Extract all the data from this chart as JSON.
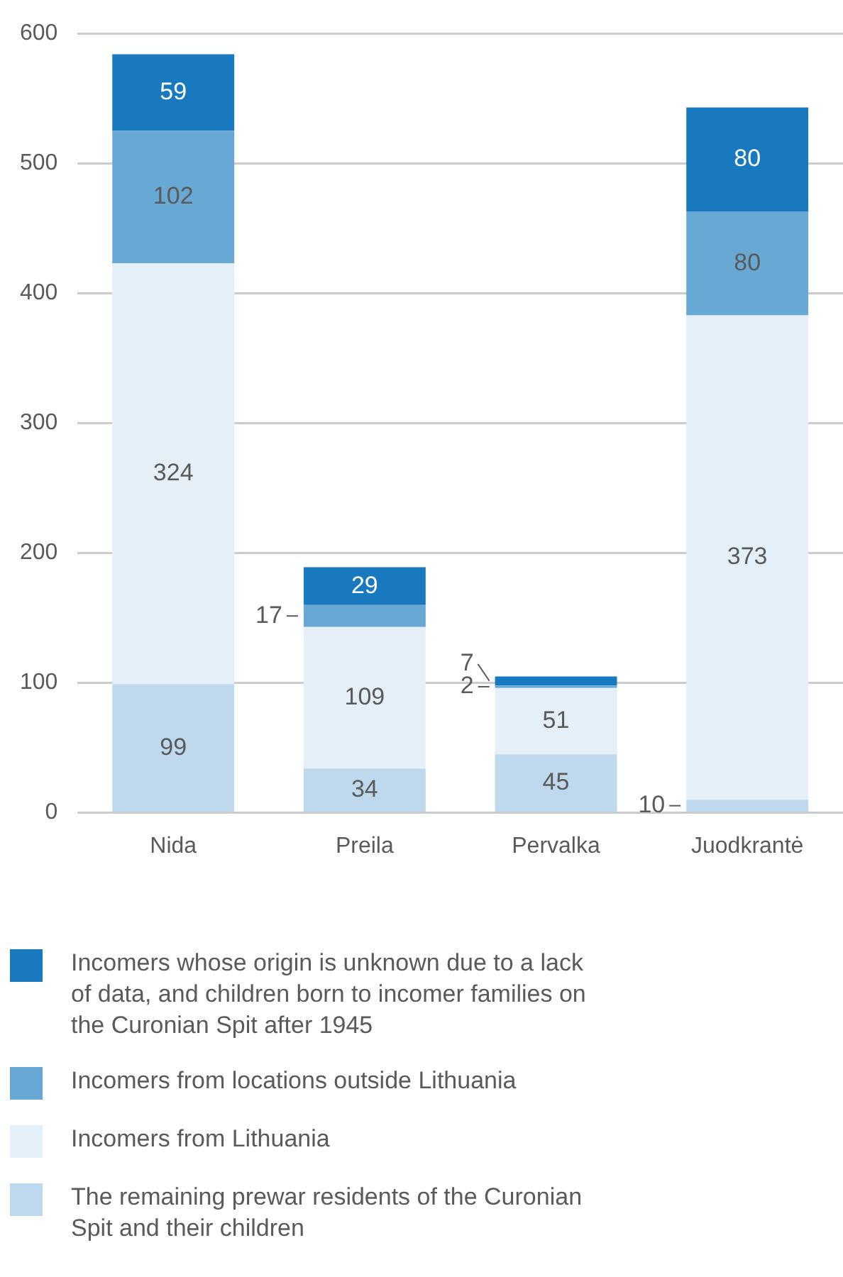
{
  "chart_data": {
    "type": "bar",
    "stacked": true,
    "categories": [
      "Nida",
      "Preila",
      "Pervalka",
      "Juodkrantė"
    ],
    "series": [
      {
        "name": "The remaining prewar residents of the Curonian Spit and their children",
        "color": "#bed9ee",
        "values": [
          99,
          34,
          45,
          10
        ]
      },
      {
        "name": "Incomers from Lithuania",
        "color": "#e5eff8",
        "values": [
          324,
          109,
          51,
          373
        ]
      },
      {
        "name": "Incomers from locations outside Lithuania",
        "color": "#67a8d5",
        "values": [
          102,
          17,
          2,
          80
        ]
      },
      {
        "name": "Incomers whose origin is unknown due to a lack of data, and children born to incomer families on the Curonian Spit after 1945",
        "color": "#1879bf",
        "values": [
          59,
          29,
          7,
          80
        ]
      }
    ],
    "ylim": [
      0,
      600
    ],
    "yticks": [
      0,
      100,
      200,
      300,
      400,
      500,
      600
    ],
    "grid": "y",
    "legend": "bottom",
    "data_labels": true
  }
}
